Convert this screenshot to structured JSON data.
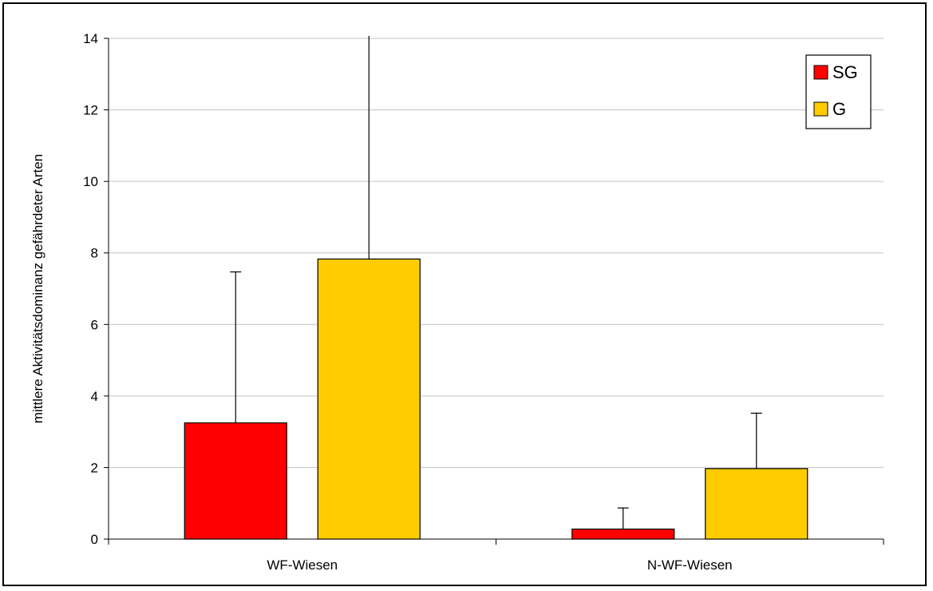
{
  "chart_data": {
    "type": "bar",
    "categories": [
      "WF-Wiesen",
      "N-WF-Wiesen"
    ],
    "series": [
      {
        "name": "SG",
        "color": "#FF0000",
        "values": [
          3.25,
          0.28
        ],
        "error_upper": [
          7.47,
          0.87
        ]
      },
      {
        "name": "G",
        "color": "#FFCC00",
        "values": [
          7.83,
          1.97
        ],
        "error_upper": [
          14.1,
          3.52
        ]
      }
    ],
    "title": "",
    "xlabel": "",
    "ylabel": "mittlere Aktivitätsdominanz gefährdeter Arten",
    "ylim": [
      0,
      14
    ],
    "yticks": [
      0,
      2,
      4,
      6,
      8,
      10,
      12,
      14
    ],
    "grid": true,
    "legend_position": "top-right"
  }
}
